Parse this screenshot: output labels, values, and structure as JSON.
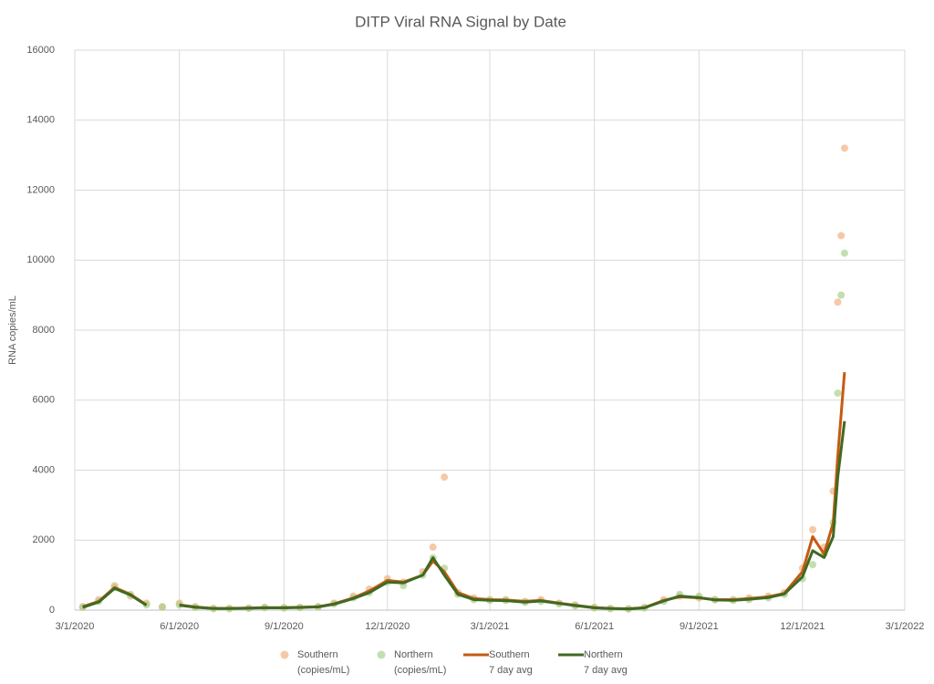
{
  "chart_data": {
    "type": "scatter",
    "title": "DITP Viral RNA Signal by Date",
    "y_label": "RNA copies/mL",
    "x": [
      "2020-03-08",
      "2020-03-22",
      "2020-04-05",
      "2020-04-19",
      "2020-05-03",
      "2020-05-17",
      "2020-06-01",
      "2020-06-15",
      "2020-07-01",
      "2020-07-15",
      "2020-08-01",
      "2020-08-15",
      "2020-09-01",
      "2020-09-15",
      "2020-10-01",
      "2020-10-15",
      "2020-11-01",
      "2020-11-15",
      "2020-12-01",
      "2020-12-15",
      "2021-01-01",
      "2021-01-10",
      "2021-01-20",
      "2021-02-01",
      "2021-02-15",
      "2021-03-01",
      "2021-03-15",
      "2021-04-01",
      "2021-04-15",
      "2021-05-01",
      "2021-05-15",
      "2021-06-01",
      "2021-06-15",
      "2021-07-01",
      "2021-07-15",
      "2021-08-01",
      "2021-08-15",
      "2021-09-01",
      "2021-09-15",
      "2021-10-01",
      "2021-10-15",
      "2021-11-01",
      "2021-11-15",
      "2021-12-01",
      "2021-12-10",
      "2021-12-20",
      "2021-12-28",
      "2022-01-01",
      "2022-01-04",
      "2022-01-07"
    ],
    "series": [
      {
        "name": "Southern (copies/mL)",
        "kind": "points",
        "color": "#f4b183",
        "values": [
          100,
          300,
          700,
          400,
          200,
          100,
          200,
          100,
          50,
          50,
          60,
          80,
          70,
          80,
          100,
          200,
          400,
          600,
          900,
          800,
          1100,
          1800,
          3800,
          500,
          350,
          300,
          300,
          250,
          300,
          200,
          150,
          80,
          50,
          40,
          80,
          300,
          400,
          350,
          300,
          300,
          350,
          400,
          500,
          1200,
          2300,
          1800,
          3400,
          8800,
          10700,
          13200
        ]
      },
      {
        "name": "Northern (copies/mL)",
        "kind": "points",
        "color": "#a9d18e",
        "values": [
          80,
          250,
          650,
          450,
          150,
          80,
          150,
          80,
          40,
          40,
          50,
          70,
          60,
          70,
          90,
          180,
          350,
          500,
          800,
          700,
          1000,
          1500,
          1200,
          450,
          300,
          280,
          280,
          220,
          250,
          180,
          120,
          60,
          40,
          30,
          60,
          250,
          450,
          400,
          300,
          280,
          300,
          350,
          450,
          900,
          1300,
          1600,
          2500,
          6200,
          9000,
          10200
        ]
      },
      {
        "name": "Southern 7 day avg",
        "kind": "line",
        "color": "#c55a11",
        "values": [
          100,
          250,
          650,
          450,
          150,
          null,
          150,
          90,
          50,
          50,
          60,
          70,
          70,
          80,
          100,
          180,
          350,
          550,
          850,
          800,
          1000,
          1400,
          1100,
          500,
          330,
          300,
          290,
          250,
          280,
          200,
          140,
          70,
          50,
          40,
          70,
          280,
          380,
          350,
          300,
          300,
          330,
          380,
          480,
          1100,
          2100,
          1600,
          2500,
          4400,
          5600,
          6800
        ]
      },
      {
        "name": "Northern 7 day avg",
        "kind": "line",
        "color": "#3f6a22",
        "values": [
          80,
          230,
          620,
          430,
          140,
          null,
          140,
          80,
          45,
          45,
          55,
          65,
          65,
          75,
          90,
          170,
          330,
          500,
          800,
          780,
          1000,
          1500,
          1000,
          450,
          300,
          280,
          270,
          230,
          260,
          190,
          130,
          65,
          45,
          35,
          65,
          260,
          400,
          360,
          290,
          280,
          310,
          360,
          460,
          950,
          1700,
          1500,
          2100,
          3800,
          4600,
          5400
        ]
      }
    ],
    "xlim": [
      "2020-03-01",
      "2022-03-01"
    ],
    "xticks": [
      {
        "value": "2020-03-01",
        "label": "3/1/2020"
      },
      {
        "value": "2020-06-01",
        "label": "6/1/2020"
      },
      {
        "value": "2020-09-01",
        "label": "9/1/2020"
      },
      {
        "value": "2020-12-01",
        "label": "12/1/2020"
      },
      {
        "value": "2021-03-01",
        "label": "3/1/2021"
      },
      {
        "value": "2021-06-01",
        "label": "6/1/2021"
      },
      {
        "value": "2021-09-01",
        "label": "9/1/2021"
      },
      {
        "value": "2021-12-01",
        "label": "12/1/2021"
      },
      {
        "value": "2022-03-01",
        "label": "3/1/2022"
      }
    ],
    "ylim": [
      0,
      16000
    ],
    "yticks": [
      0,
      2000,
      4000,
      6000,
      8000,
      10000,
      12000,
      14000,
      16000
    ],
    "grid": true,
    "legend": "bottom"
  }
}
